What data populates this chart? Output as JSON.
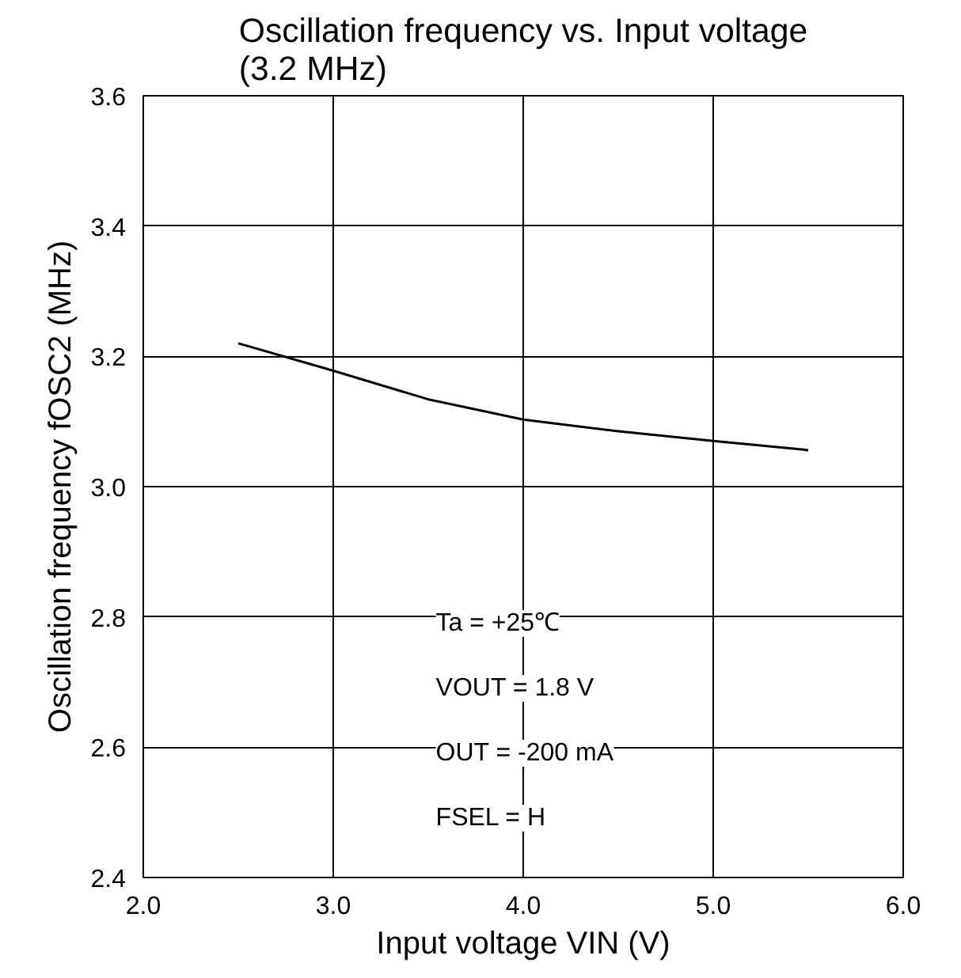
{
  "chart_data": {
    "type": "line",
    "title": "Oscillation frequency vs. Input voltage\n(3.2 MHz)",
    "xlabel": "Input voltage VIN (V)",
    "ylabel": "Oscillation frequency fOSC2 (MHz)",
    "x": [
      2.5,
      3.0,
      3.5,
      4.0,
      4.5,
      5.0,
      5.5
    ],
    "series": [
      {
        "color": "#000000",
        "values": [
          3.22,
          3.178,
          3.134,
          3.103,
          3.085,
          3.07,
          3.056
        ]
      }
    ],
    "xlim": [
      2.0,
      6.0
    ],
    "ylim": [
      2.4,
      3.6
    ],
    "xticks": [
      {
        "value": 2,
        "label": "2.0"
      },
      {
        "value": 3,
        "label": "3.0"
      },
      {
        "value": 4,
        "label": "4.0"
      },
      {
        "value": 5,
        "label": "5.0"
      },
      {
        "value": 6,
        "label": "6.0"
      }
    ],
    "yticks": [
      2.4,
      2.6,
      2.8,
      {
        "value": 3,
        "label": "3.0"
      },
      3.2,
      3.4,
      3.6
    ],
    "grid": true,
    "marker": "none",
    "line_style": "solid",
    "annotations": [
      "Ta = +25℃",
      "VOUT = 1.8 V",
      "OUT = -200 mA",
      "FSEL = H"
    ]
  }
}
